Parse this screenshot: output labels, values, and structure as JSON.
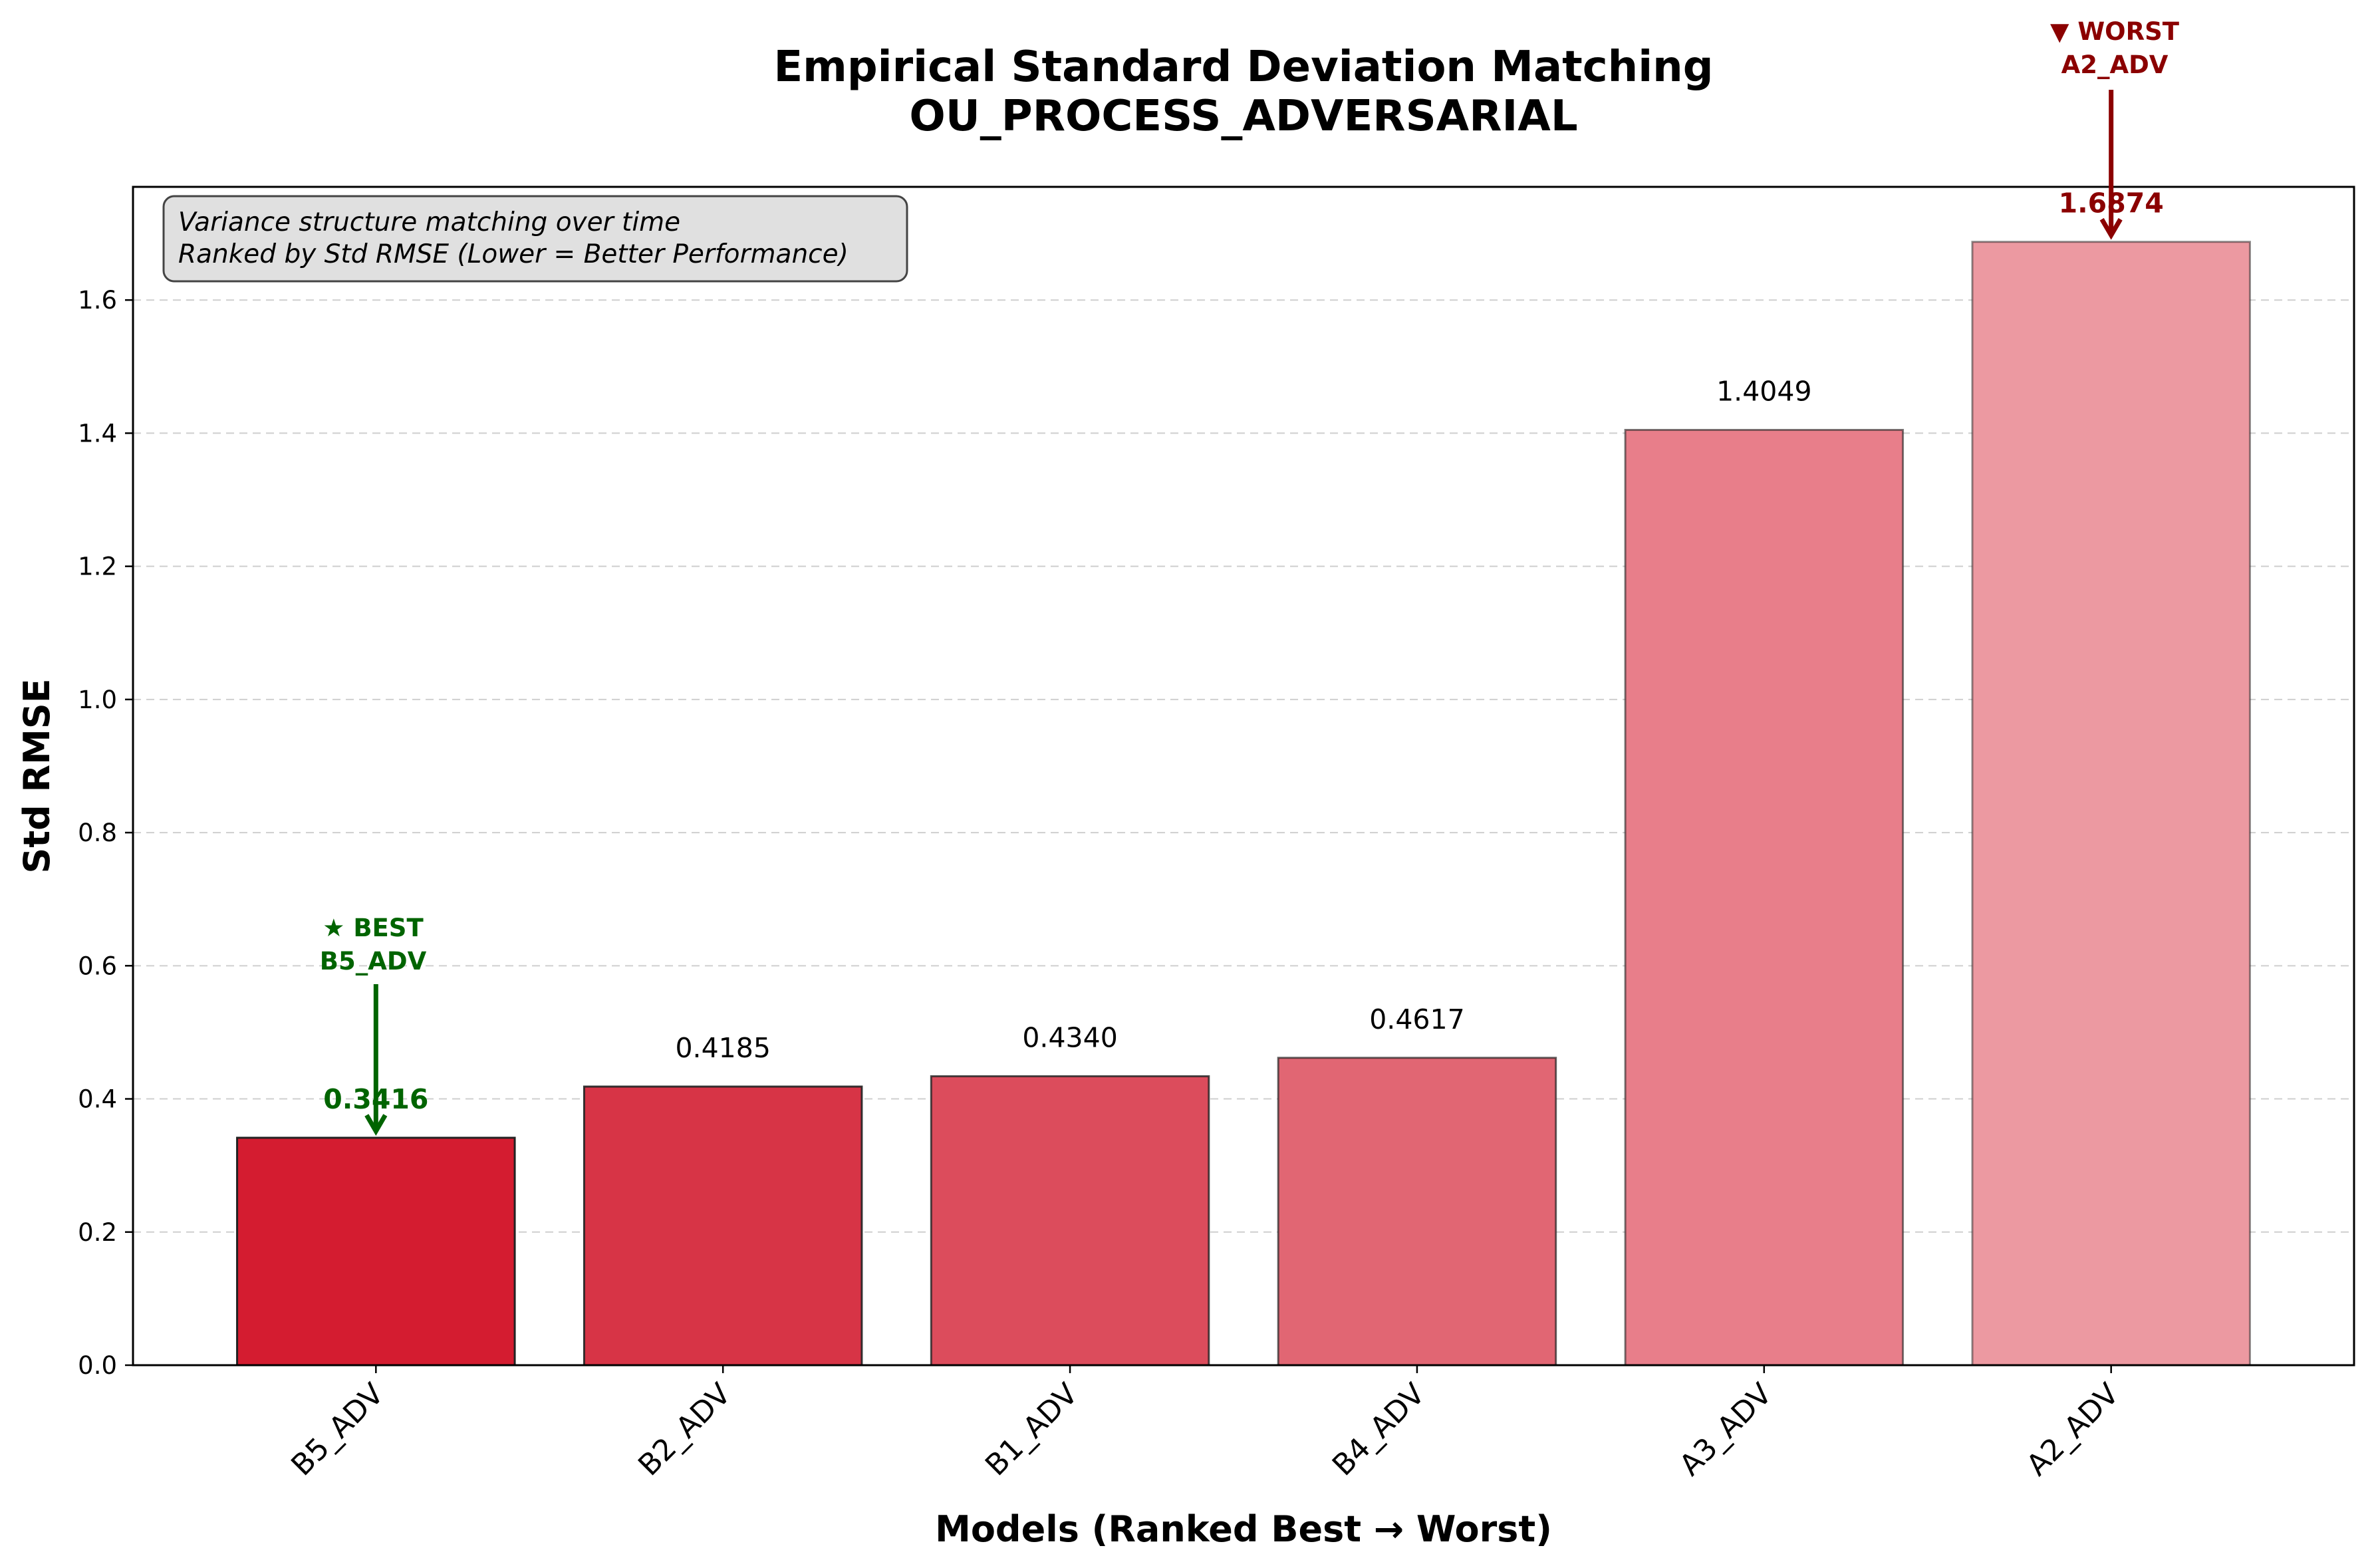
{
  "chart_data": {
    "type": "bar",
    "title": "Empirical Standard Deviation Matching",
    "subtitle": "OU_PROCESS_ADVERSARIAL",
    "xlabel": "Models (Ranked Best → Worst)",
    "ylabel": "Std RMSE",
    "categories": [
      "B5_ADV",
      "B2_ADV",
      "B1_ADV",
      "B4_ADV",
      "A3_ADV",
      "A2_ADV"
    ],
    "values": [
      0.3416,
      0.4185,
      0.434,
      0.4617,
      1.4049,
      1.6874
    ],
    "value_labels": [
      "0.3416",
      "0.4185",
      "0.4340",
      "0.4617",
      "1.4049",
      "1.6874"
    ],
    "bar_colors": [
      "#d41c30",
      "#d73446",
      "#dc4c5c",
      "#e16673",
      "#e87e8a",
      "#ec99a1"
    ],
    "ylim": [
      0,
      1.77
    ],
    "yticks": [
      "0.0",
      "0.2",
      "0.4",
      "0.6",
      "0.8",
      "1.0",
      "1.2",
      "1.4",
      "1.6"
    ],
    "grid": "horizontal dashed",
    "info_box": [
      "Variance structure matching over time",
      "Ranked by Std RMSE (Lower = Better Performance)"
    ],
    "best_annotation": {
      "line1": "★ BEST",
      "line2": "B5_ADV",
      "color": "#006400"
    },
    "worst_annotation": {
      "line1": "▼ WORST",
      "line2": "A2_ADV",
      "color": "#8b0000"
    }
  }
}
